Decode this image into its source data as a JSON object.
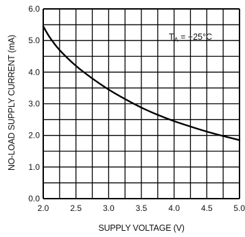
{
  "chart_data": {
    "type": "line",
    "xlabel": "SUPPLY VOLTAGE (V)",
    "ylabel": "NO-LOAD SUPPLY CURRENT (mA)",
    "xlim": [
      2.0,
      5.0
    ],
    "ylim": [
      0.0,
      6.0
    ],
    "x_ticks": [
      "2.0",
      "2.5",
      "3.0",
      "3.5",
      "4.0",
      "4.5",
      "5.0"
    ],
    "y_ticks": [
      "0.0",
      "1.0",
      "2.0",
      "3.0",
      "4.0",
      "5.0",
      "6.0"
    ],
    "grid": true,
    "annotation": {
      "base": "T",
      "subscript": "A",
      "rest": " = +25°C"
    },
    "series": [
      {
        "x": [
          2.0,
          2.1,
          2.25,
          2.5,
          2.75,
          3.0,
          3.25,
          3.5,
          3.75,
          4.0,
          4.25,
          4.5,
          4.75,
          5.0
        ],
        "values": [
          5.45,
          5.1,
          4.7,
          4.2,
          3.8,
          3.45,
          3.15,
          2.88,
          2.65,
          2.45,
          2.28,
          2.12,
          1.98,
          1.85
        ]
      }
    ]
  }
}
